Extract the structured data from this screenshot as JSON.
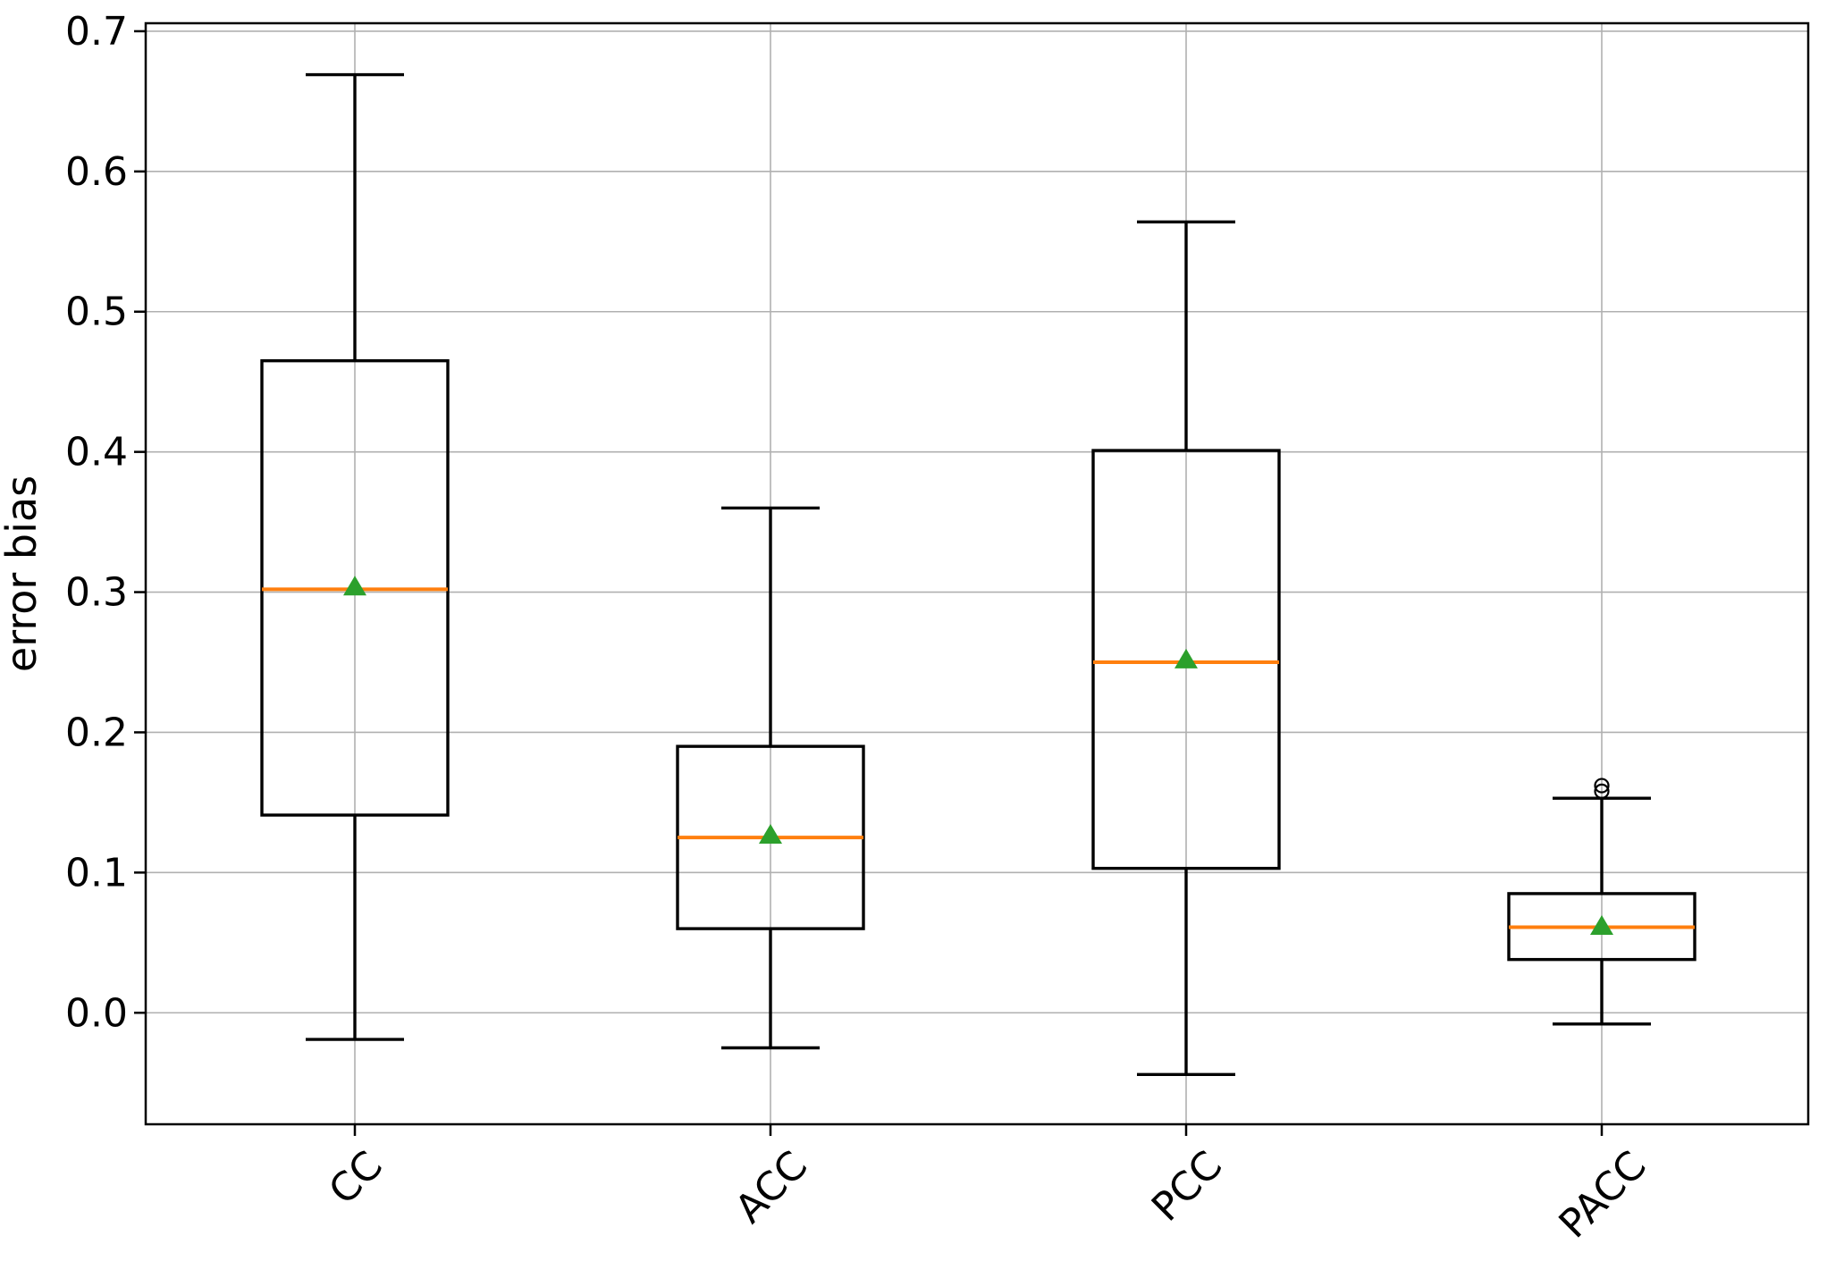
{
  "chart_data": {
    "type": "boxplot",
    "title": "",
    "xlabel": "",
    "ylabel": "error bias",
    "categories": [
      "CC",
      "ACC",
      "PCC",
      "PACC"
    ],
    "ytick_labels": [
      "0.0",
      "0.1",
      "0.2",
      "0.3",
      "0.4",
      "0.5",
      "0.6",
      "0.7"
    ],
    "yticks": [
      0.0,
      0.1,
      0.2,
      0.3,
      0.4,
      0.5,
      0.6,
      0.7
    ],
    "ylim": [
      -0.0795,
      0.7057
    ],
    "grid": true,
    "legend_position": "none",
    "xtick_rotation_deg": 45,
    "series": [
      {
        "label": "CC",
        "whislo": -0.019,
        "q1": 0.141,
        "med": 0.302,
        "mean": 0.304,
        "q3": 0.465,
        "whishi": 0.669,
        "fliers": []
      },
      {
        "label": "ACC",
        "whislo": -0.025,
        "q1": 0.06,
        "med": 0.125,
        "mean": 0.127,
        "q3": 0.19,
        "whishi": 0.36,
        "fliers": []
      },
      {
        "label": "PCC",
        "whislo": -0.044,
        "q1": 0.103,
        "med": 0.25,
        "mean": 0.252,
        "q3": 0.401,
        "whishi": 0.564,
        "fliers": []
      },
      {
        "label": "PACC",
        "whislo": -0.008,
        "q1": 0.038,
        "med": 0.061,
        "mean": 0.062,
        "q3": 0.085,
        "whishi": 0.153,
        "fliers": [
          0.158,
          0.162
        ]
      }
    ],
    "colors": {
      "median": "#ff7f0e",
      "mean": "#2ca02c",
      "box": "#000000",
      "whisker": "#000000",
      "flier_edge": "#000000",
      "grid": "#b0b0b0",
      "frame": "#000000",
      "background": "#ffffff"
    }
  }
}
